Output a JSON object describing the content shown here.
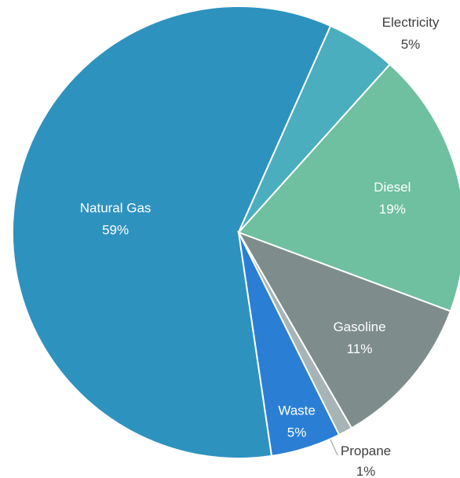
{
  "chart_data": {
    "type": "pie",
    "title": "",
    "start_angle_deg": 66,
    "direction": "counterclockwise",
    "slices": [
      {
        "label": "Natural Gas",
        "value": 59,
        "pct_label": "59%",
        "color": "#2e92bf",
        "label_inside": true
      },
      {
        "label": "Waste",
        "value": 5,
        "pct_label": "5%",
        "color": "#2a7fd4",
        "label_inside": true
      },
      {
        "label": "Propane",
        "value": 1,
        "pct_label": "1%",
        "color": "#a6b4b6",
        "label_inside": false
      },
      {
        "label": "Gasoline",
        "value": 11,
        "pct_label": "11%",
        "color": "#7e8c8c",
        "label_inside": true
      },
      {
        "label": "Diesel",
        "value": 19,
        "pct_label": "19%",
        "color": "#6fbfa1",
        "label_inside": true
      },
      {
        "label": "Electricity",
        "value": 5,
        "pct_label": "5%",
        "color": "#4aaebe",
        "label_inside": false
      }
    ]
  }
}
